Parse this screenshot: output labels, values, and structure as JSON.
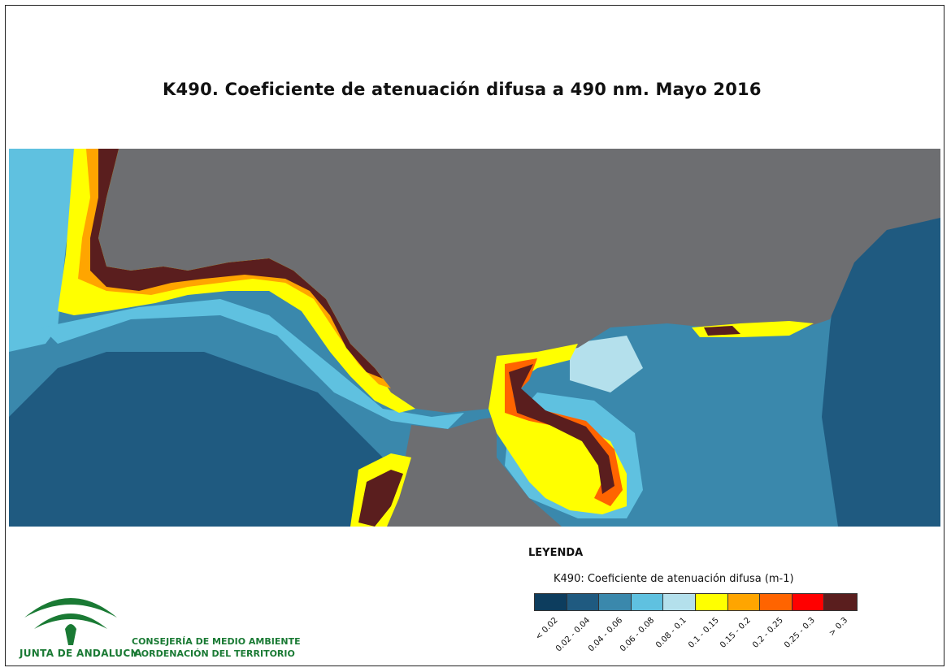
{
  "title": "K490. Coeficiente de atenuación difusa a 490 nm. Mayo 2016",
  "legend": {
    "heading": "LEYENDA",
    "subtitle": "K490: Coeficiente de atenuación difusa (m-1)",
    "classes": [
      {
        "label": "< 0.02",
        "color": "#0d3d5e"
      },
      {
        "label": "0.02 - 0.04",
        "color": "#1f5a80"
      },
      {
        "label": "0.04 - 0.06",
        "color": "#3a88ac"
      },
      {
        "label": "0.06 - 0.08",
        "color": "#5fc1e0"
      },
      {
        "label": "0.08 - 0.1",
        "color": "#b4e0ec"
      },
      {
        "label": "0.1 - 0.15",
        "color": "#ffff00"
      },
      {
        "label": "0.15 - 0.2",
        "color": "#ffa500"
      },
      {
        "label": "0.2 - 0.25",
        "color": "#ff6400"
      },
      {
        "label": "0.25 - 0.3",
        "color": "#ff0000"
      },
      {
        "label": "> 0.3",
        "color": "#5a1e1e"
      }
    ]
  },
  "map": {
    "land_color": "#6d6e71"
  },
  "logo": {
    "name": "JUNTA DE ANDALUCIA",
    "icon": "junta-de-andalucia-logo"
  },
  "department": {
    "line1": "CONSEJERÍA DE MEDIO AMBIENTE",
    "line2": "Y ORDENACIÓN DEL TERRITORIO"
  }
}
